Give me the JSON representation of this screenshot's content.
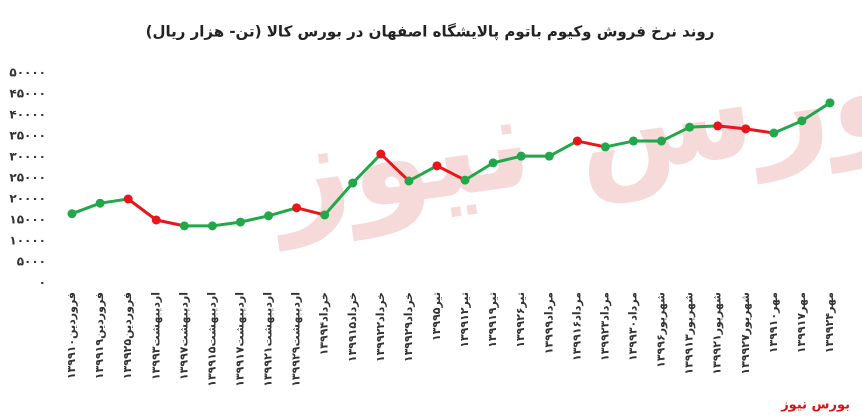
{
  "chart_data": {
    "type": "line",
    "title": "روند نرخ فروش وکیوم باتوم پالایشگاه اصفهان در بورس کالا (تن- هزار ریال)",
    "watermark": "بورس نیوز",
    "source": "بورس نیوز",
    "categories": [
      "۱۳۹۹فروردین۱۰",
      "۱۳۹۹فروردین۱۹",
      "۱۳۹۹فروردین۲۵",
      "۱۳۹۹اردیبهشت۳",
      "۱۳۹۹اردیبهشت۷",
      "۱۳۹۹اردیبهشت۱۵",
      "۱۳۹۹اردیبهشت۱۷",
      "۱۳۹۹اردیبهشت۲۱",
      "۱۳۹۹اردیبهشت۲۹",
      "۱۳۹۹خرداد۴",
      "۱۳۹۹خرداد۱۵",
      "۱۳۹۹خرداد۲۲",
      "۱۳۹۹خرداد۲۹",
      "۱۳۹۹تیر۵",
      "۱۳۹۹تیر۱۲",
      "۱۳۹۹تیر۱۹",
      "۱۳۹۹تیر۲۶",
      "۱۳۹۹مرداد۹",
      "۱۳۹۹مرداد۱۶",
      "۱۳۹۹مرداد۲۳",
      "۱۳۹۹مرداد۳۰",
      "۱۳۹۹شهریور۶",
      "۱۳۹۹شهریور۱۳",
      "۱۳۹۹شهریور۲۱",
      "۱۳۹۹شهریور۲۷",
      "۱۳۹۹مهر۱۰",
      "۱۳۹۹مهر۱۷",
      "۱۳۹۹مهر۲۴"
    ],
    "values": [
      16500,
      19000,
      20000,
      15000,
      13600,
      13600,
      14500,
      16000,
      17900,
      16200,
      23800,
      30700,
      24300,
      27900,
      24500,
      28600,
      30200,
      30200,
      33800,
      32400,
      33800,
      33800,
      37100,
      37400,
      36700,
      35700,
      38600,
      42900
    ],
    "up_color": "#22a84a",
    "down_color": "#e8151b",
    "ylim": [
      0,
      50000
    ],
    "yticks": [
      {
        "value": 0,
        "label": "۰"
      },
      {
        "value": 5000,
        "label": "۵۰۰۰"
      },
      {
        "value": 10000,
        "label": "۱۰۰۰۰"
      },
      {
        "value": 15000,
        "label": "۱۵۰۰۰"
      },
      {
        "value": 20000,
        "label": "۲۰۰۰۰"
      },
      {
        "value": 25000,
        "label": "۲۵۰۰۰"
      },
      {
        "value": 30000,
        "label": "۳۰۰۰۰"
      },
      {
        "value": 35000,
        "label": "۳۵۰۰۰"
      },
      {
        "value": 40000,
        "label": "۴۰۰۰۰"
      },
      {
        "value": 45000,
        "label": "۴۵۰۰۰"
      },
      {
        "value": 50000,
        "label": "۵۰۰۰۰"
      }
    ],
    "grid": false
  }
}
